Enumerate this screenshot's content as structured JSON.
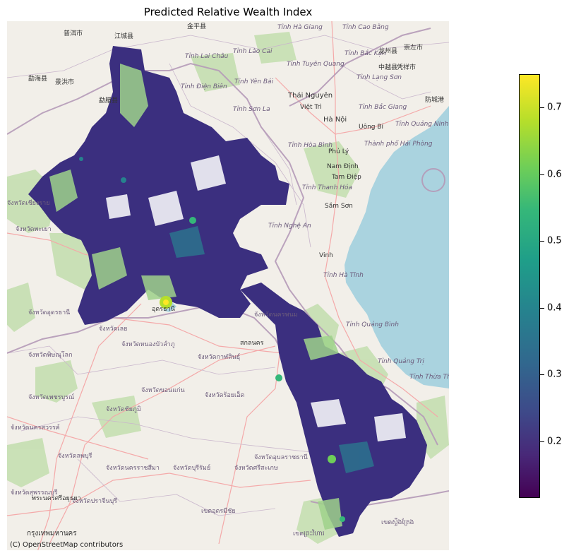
{
  "title": "Predicted Relative Wealth Index",
  "attribution": "(C) OpenStreetMap contributors",
  "colorbar": {
    "min": 0.115,
    "max": 0.75,
    "ticks": [
      "0.2",
      "0.3",
      "0.4",
      "0.5",
      "0.6",
      "0.7"
    ],
    "colormap": "viridis"
  },
  "colors": {
    "land": "#f2efe9",
    "water": "#aad3df",
    "forest": "#c5dfb1",
    "border": "#b59ab8"
  },
  "place_labels": [
    {
      "text": "Hà Nội"
    },
    {
      "text": "Thái Nguyên"
    },
    {
      "text": "Nam Định"
    },
    {
      "text": "Vinh"
    },
    {
      "text": "Sầm Sơn"
    },
    {
      "text": "Tam Điệp"
    },
    {
      "text": "Phủ Lý"
    },
    {
      "text": "Uông Bí"
    },
    {
      "text": "Việt Trì"
    },
    {
      "text": "Tỉnh Hà Tĩnh"
    },
    {
      "text": "Tỉnh Quảng Bình"
    },
    {
      "text": "Tỉnh Quảng Trị"
    },
    {
      "text": "Tỉnh Nghệ An"
    },
    {
      "text": "Tỉnh Thanh Hóa"
    },
    {
      "text": "Tỉnh Sơn La"
    },
    {
      "text": "Tỉnh Điện Biên"
    },
    {
      "text": "Tỉnh Lai Châu"
    },
    {
      "text": "Tỉnh Lào Cai"
    },
    {
      "text": "Tỉnh Hà Giang"
    },
    {
      "text": "Tỉnh Cao Bằng"
    },
    {
      "text": "Tỉnh Bắc Kạn"
    },
    {
      "text": "Tỉnh Tuyên Quang"
    },
    {
      "text": "Tỉnh Lạng Sơn"
    },
    {
      "text": "Tỉnh Yên Bái"
    },
    {
      "text": "Tỉnh Bắc Giang"
    },
    {
      "text": "Tỉnh Quảng Ninh"
    },
    {
      "text": "Thành phố Hải Phòng"
    },
    {
      "text": "Tỉnh Hòa Bình"
    },
    {
      "text": "Tỉnh Thừa Thiên Huế"
    },
    {
      "text": "普洱市"
    },
    {
      "text": "江城县"
    },
    {
      "text": "金平县"
    },
    {
      "text": "景洪市"
    },
    {
      "text": "勐海县"
    },
    {
      "text": "勐腊县"
    },
    {
      "text": "崇左市"
    },
    {
      "text": "龙州县"
    },
    {
      "text": "凭祥市"
    },
    {
      "text": "中越县"
    },
    {
      "text": "防城港"
    },
    {
      "text": "กรุงเทพมหานคร"
    },
    {
      "text": "จังหวัดอุดรธานี"
    },
    {
      "text": "จังหวัดเลย"
    },
    {
      "text": "จังหวัดหนองบัวลำภู"
    },
    {
      "text": "จังหวัดกาฬสินธุ์"
    },
    {
      "text": "จังหวัดขอนแก่น"
    },
    {
      "text": "จังหวัดชัยภูมิ"
    },
    {
      "text": "จังหวัดร้อยเอ็ด"
    },
    {
      "text": "จังหวัดอุบลราชธานี"
    },
    {
      "text": "จังหวัดนครราชสีมา"
    },
    {
      "text": "จังหวัดบุรีรัมย์"
    },
    {
      "text": "จังหวัดศรีสะเกษ"
    },
    {
      "text": "จังหวัดเพชรบูรณ์"
    },
    {
      "text": "จังหวัดพิษณุโลก"
    },
    {
      "text": "จังหวัดลพบุรี"
    },
    {
      "text": "จังหวัดนครสวรรค์"
    },
    {
      "text": "จังหวัดสุพรรณบุรี"
    },
    {
      "text": "จังหวัดปราจีนบุรี"
    },
    {
      "text": "จังหวัดพะเยา"
    },
    {
      "text": "จังหวัดเชียงราย"
    },
    {
      "text": "จังหวัดนครพนม"
    },
    {
      "text": "สกลนคร"
    },
    {
      "text": "อุดรธานี"
    },
    {
      "text": "พระนครศรีอยุธยา"
    },
    {
      "text": "เขตอุดรมีชัย"
    },
    {
      "text": "เขตព្រះវិហារ"
    },
    {
      "text": "เขตស្ទឹងត្រែង"
    }
  ]
}
